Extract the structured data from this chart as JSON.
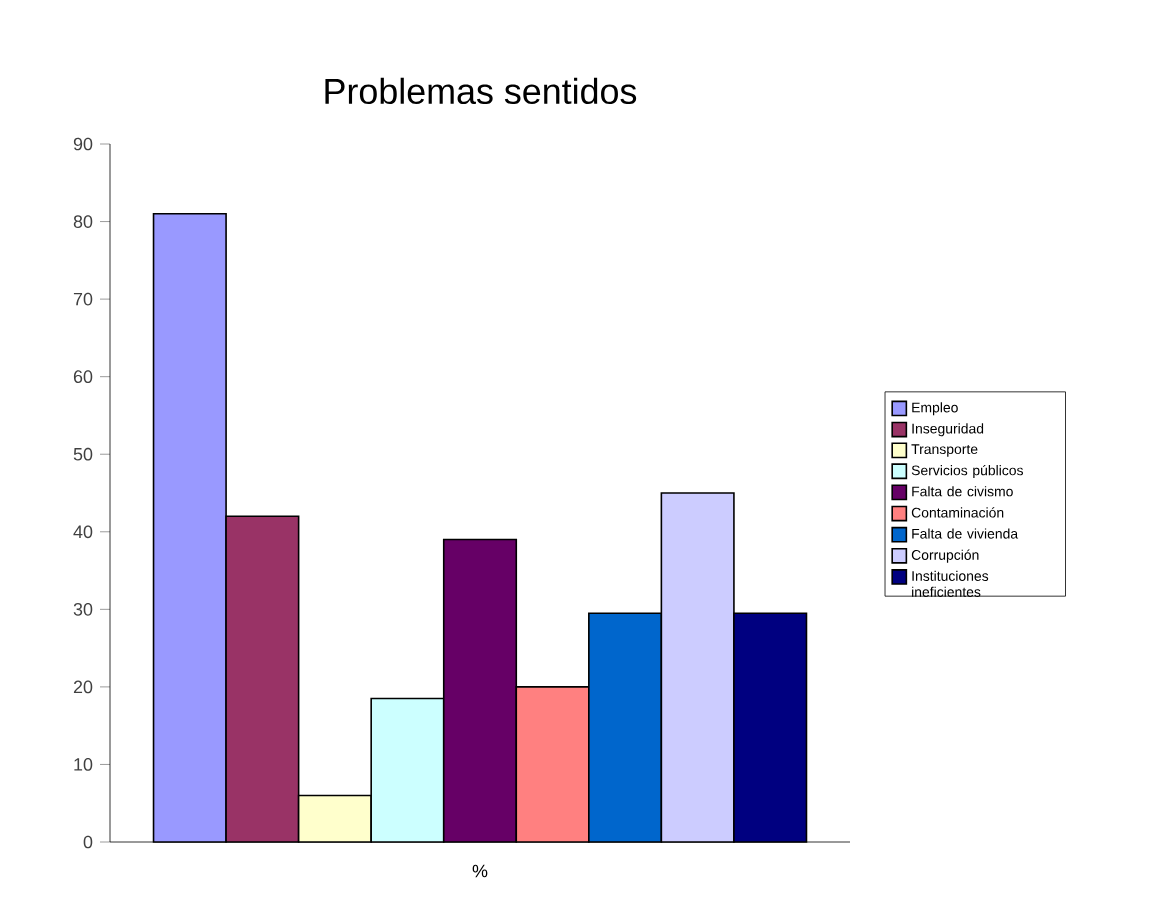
{
  "chart_data": {
    "type": "bar",
    "title": "Problemas sentidos",
    "xlabel": "%",
    "categories": [
      null
    ],
    "series": [
      {
        "name": "Empleo",
        "color": "#9999ff",
        "values": [
          81
        ]
      },
      {
        "name": "Inseguridad",
        "color": "#993366",
        "values": [
          42
        ]
      },
      {
        "name": "Transporte",
        "color": "#ffffcc",
        "values": [
          6
        ]
      },
      {
        "name": "Servicios públicos",
        "color": "#ccffff",
        "values": [
          18.5
        ]
      },
      {
        "name": "Falta de civismo",
        "color": "#660066",
        "values": [
          39
        ]
      },
      {
        "name": "Contaminación",
        "color": "#ff8080",
        "values": [
          20
        ]
      },
      {
        "name": "Falta de vivienda",
        "color": "#0066cc",
        "values": [
          29.5
        ]
      },
      {
        "name": "Corrupción",
        "color": "#ccccff",
        "values": [
          45
        ]
      },
      {
        "name": "Instituciones ineficientes",
        "color": "#000080",
        "values": [
          29.5
        ]
      }
    ],
    "ylim": [
      0,
      90
    ],
    "yticks": [
      0,
      10,
      20,
      30,
      40,
      50,
      60,
      70,
      80,
      90
    ],
    "grid": false,
    "legend": "right"
  }
}
